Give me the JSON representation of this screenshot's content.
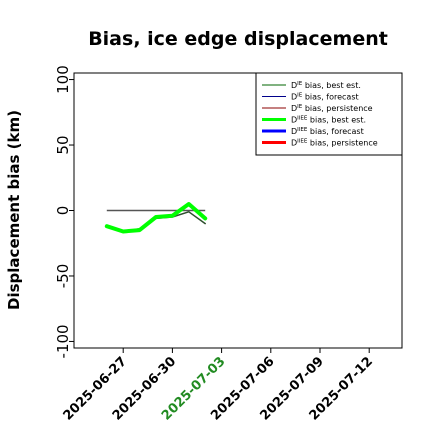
{
  "chart_data": {
    "type": "line",
    "title": "Bias, ice edge displacement",
    "xlabel": "",
    "ylabel": "Displacement bias (km)",
    "ylim": [
      -105,
      105
    ],
    "xlim": [
      "2025-06-24",
      "2025-07-14"
    ],
    "y_ticks": [
      "100",
      "50",
      "0",
      "-50",
      "-100"
    ],
    "y_tick_values": [
      100,
      50,
      0,
      -50,
      -100
    ],
    "x_ticks": [
      {
        "label": "2025-06-27",
        "date": "2025-06-27",
        "color": "#000000"
      },
      {
        "label": "2025-06-30",
        "date": "2025-06-30",
        "color": "#000000"
      },
      {
        "label": "2025-07-03",
        "date": "2025-07-03",
        "color": "#228b22"
      },
      {
        "label": "2025-07-06",
        "date": "2025-07-06",
        "color": "#000000"
      },
      {
        "label": "2025-07-09",
        "date": "2025-07-09",
        "color": "#000000"
      },
      {
        "label": "2025-07-12",
        "date": "2025-07-12",
        "color": "#000000"
      }
    ],
    "reference_line": {
      "y": 0,
      "from": "2025-06-26",
      "to": "2025-07-02",
      "color": "#555555"
    },
    "legend_position": "top-right",
    "legend": [
      {
        "label_main": "D",
        "label_sup": "IE",
        "label_rest": " bias, best est.",
        "color": "#006400",
        "width": 1
      },
      {
        "label_main": "D",
        "label_sup": "IE",
        "label_rest": " bias, forecast",
        "color": "#00008b",
        "width": 1
      },
      {
        "label_main": "D",
        "label_sup": "IE",
        "label_rest": " bias, persistence",
        "color": "#8b0000",
        "width": 1
      },
      {
        "label_main": "D",
        "label_sup": "IIEE",
        "label_rest": " bias, best est.",
        "color": "#00ff00",
        "width": 3
      },
      {
        "label_main": "D",
        "label_sup": "IIEE",
        "label_rest": " bias, forecast",
        "color": "#0000ff",
        "width": 3
      },
      {
        "label_main": "D",
        "label_sup": "IIEE",
        "label_rest": " bias, persistence",
        "color": "#ff0000",
        "width": 3
      }
    ],
    "series": [
      {
        "name": "DIE bias, best est.",
        "color": "#2f4f2f",
        "width": 1.5,
        "x": [
          "2025-06-26",
          "2025-06-27",
          "2025-06-28",
          "2025-06-29",
          "2025-06-30",
          "2025-07-01",
          "2025-07-02"
        ],
        "y": [
          -12,
          -16,
          -14,
          -6,
          -5,
          -1,
          -10
        ]
      },
      {
        "name": "DIIEE bias, best est.",
        "color": "#00ff00",
        "width": 4,
        "x": [
          "2025-06-26",
          "2025-06-27",
          "2025-06-28",
          "2025-06-29",
          "2025-06-30",
          "2025-07-01",
          "2025-07-02"
        ],
        "y": [
          -12,
          -16,
          -15,
          -5,
          -4,
          5,
          -6
        ]
      }
    ]
  }
}
